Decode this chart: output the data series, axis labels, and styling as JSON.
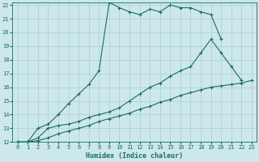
{
  "xlabel": "Humidex (Indice chaleur)",
  "bg_color": "#cce8ea",
  "grid_color": "#aacdd0",
  "line_color": "#1a6b6b",
  "xlim": [
    -0.5,
    23.5
  ],
  "ylim": [
    12,
    22.2
  ],
  "xticks": [
    0,
    1,
    2,
    3,
    4,
    5,
    6,
    7,
    8,
    9,
    10,
    11,
    12,
    13,
    14,
    15,
    16,
    17,
    18,
    19,
    20,
    21,
    22,
    23
  ],
  "yticks": [
    12,
    13,
    14,
    15,
    16,
    17,
    18,
    19,
    20,
    21,
    22
  ],
  "series": [
    {
      "x": [
        0,
        1,
        2,
        3,
        4,
        5,
        6,
        7,
        8,
        9,
        10,
        11,
        12,
        13,
        14,
        15,
        16,
        17,
        18,
        19,
        20
      ],
      "y": [
        12,
        12,
        13,
        13.3,
        14,
        14.8,
        15.5,
        16.2,
        17.2,
        22.2,
        21.8,
        21.5,
        21.3,
        21.7,
        21.5,
        22.0,
        21.8,
        21.8,
        21.5,
        21.3,
        19.5
      ]
    },
    {
      "x": [
        0,
        1,
        2,
        3,
        4,
        5,
        6,
        7,
        8,
        9,
        10,
        11,
        12,
        13,
        14,
        15,
        16,
        17,
        18,
        19,
        20,
        21,
        22
      ],
      "y": [
        12,
        12,
        12.3,
        13.0,
        13.2,
        13.3,
        13.5,
        13.8,
        14.0,
        14.2,
        14.5,
        15.0,
        15.5,
        16.0,
        16.3,
        16.8,
        17.2,
        17.5,
        18.5,
        19.5,
        18.5,
        17.5,
        16.5
      ]
    },
    {
      "x": [
        0,
        1,
        2,
        3,
        4,
        5,
        6,
        7,
        8,
        9,
        10,
        11,
        12,
        13,
        14,
        15,
        16,
        17,
        18,
        19,
        20,
        21,
        22,
        23
      ],
      "y": [
        12,
        12,
        12.1,
        12.3,
        12.6,
        12.8,
        13.0,
        13.2,
        13.5,
        13.7,
        13.9,
        14.1,
        14.4,
        14.6,
        14.9,
        15.1,
        15.4,
        15.6,
        15.8,
        16.0,
        16.1,
        16.2,
        16.3,
        16.5
      ]
    }
  ]
}
